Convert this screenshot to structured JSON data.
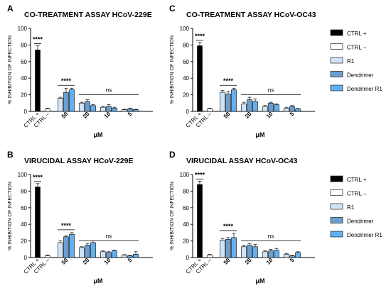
{
  "colors": {
    "ctrl_pos": "#000000",
    "ctrl_neg": "#ffffff",
    "r1": "#cfe5f7",
    "dendrimer": "#6b9fcf",
    "dendrimer_r1": "#64b0ee"
  },
  "chart_data": [
    {
      "type": "bar",
      "panel_letter": "A",
      "title": "CO-TREATMENT ASSAY HCoV-229E",
      "ylabel": "% INHIBITION OF INFECTION",
      "xlabel": "μM",
      "ylim": [
        0,
        100
      ],
      "yticks": [
        0,
        20,
        40,
        60,
        80,
        100
      ],
      "controls": [
        {
          "label": "CTRL +",
          "value": 74,
          "err": 5
        },
        {
          "label": "CTRL –",
          "value": 3,
          "err": 1
        }
      ],
      "categories": [
        "50",
        "20",
        "10",
        "5"
      ],
      "series": [
        {
          "name": "R1",
          "values": [
            16,
            10,
            5,
            2
          ],
          "err": [
            1,
            1,
            1,
            0.5
          ]
        },
        {
          "name": "Dendrimer",
          "values": [
            23,
            12,
            6,
            3
          ],
          "err": [
            5,
            2,
            2,
            1
          ]
        },
        {
          "name": "Dendrimer R1",
          "values": [
            26,
            7,
            4,
            2
          ],
          "err": [
            2,
            1,
            1,
            0.5
          ]
        }
      ],
      "annotations": {
        "ctrl": "****",
        "dose50": "****",
        "ns": "ns"
      },
      "show_legend": false
    },
    {
      "type": "bar",
      "panel_letter": "C",
      "title": "CO-TREATMENT ASSAY HCoV-OC43",
      "ylabel": "% INHIBITION OF INFECTION",
      "xlabel": "μM",
      "ylim": [
        0,
        100
      ],
      "yticks": [
        0,
        20,
        40,
        60,
        80,
        100
      ],
      "controls": [
        {
          "label": "CTRL +",
          "value": 79,
          "err": 4
        },
        {
          "label": "CTRL –",
          "value": 3,
          "err": 1
        }
      ],
      "categories": [
        "50",
        "20",
        "10",
        "5"
      ],
      "series": [
        {
          "name": "R1",
          "values": [
            23,
            9,
            6,
            4
          ],
          "err": [
            2,
            2,
            1,
            1
          ]
        },
        {
          "name": "Dendrimer",
          "values": [
            21,
            14,
            10,
            6
          ],
          "err": [
            3,
            3,
            1,
            1
          ]
        },
        {
          "name": "Dendrimer R1",
          "values": [
            26,
            12,
            8,
            3
          ],
          "err": [
            2,
            3,
            1,
            0.5
          ]
        }
      ],
      "annotations": {
        "ctrl": "****",
        "dose50": "****",
        "ns": "ns"
      },
      "show_legend": true
    },
    {
      "type": "bar",
      "panel_letter": "B",
      "title": "VIRUCIDAL ASSAY HCoV-229E",
      "ylabel": "% INHIBITION OF INFECTION",
      "xlabel": "μM",
      "ylim": [
        0,
        100
      ],
      "yticks": [
        0,
        20,
        40,
        60,
        80,
        100
      ],
      "controls": [
        {
          "label": "CTRL +",
          "value": 85,
          "err": 4
        },
        {
          "label": "CTRL –",
          "value": 2,
          "err": 1
        }
      ],
      "categories": [
        "50",
        "20",
        "10",
        "5"
      ],
      "series": [
        {
          "name": "R1",
          "values": [
            18,
            12,
            7,
            3
          ],
          "err": [
            2,
            1,
            1,
            0.5
          ]
        },
        {
          "name": "Dendrimer",
          "values": [
            25,
            15,
            6,
            2
          ],
          "err": [
            1,
            2,
            1,
            0.5
          ]
        },
        {
          "name": "Dendrimer R1",
          "values": [
            28,
            18,
            8,
            4
          ],
          "err": [
            2,
            2,
            1,
            3
          ]
        }
      ],
      "annotations": {
        "ctrl": "****",
        "dose50": "****",
        "ns": "ns"
      },
      "show_legend": false
    },
    {
      "type": "bar",
      "panel_letter": "D",
      "title": "VIRUCIDAL ASSAY HCoV-OC43",
      "ylabel": "% INHIBITION OF INFECTION",
      "xlabel": "μM",
      "ylim": [
        0,
        100
      ],
      "yticks": [
        0,
        20,
        40,
        60,
        80,
        100
      ],
      "controls": [
        {
          "label": "CTRL +",
          "value": 88,
          "err": 4
        },
        {
          "label": "CTRL –",
          "value": 3,
          "err": 1
        }
      ],
      "categories": [
        "50",
        "20",
        "10",
        "5"
      ],
      "series": [
        {
          "name": "R1",
          "values": [
            21,
            13,
            7,
            4
          ],
          "err": [
            2,
            2,
            1,
            1
          ]
        },
        {
          "name": "Dendrimer",
          "values": [
            22,
            15,
            8,
            2
          ],
          "err": [
            2,
            2,
            2,
            0.5
          ]
        },
        {
          "name": "Dendrimer R1",
          "values": [
            24,
            13,
            9,
            6
          ],
          "err": [
            5,
            3,
            2,
            1
          ]
        }
      ],
      "annotations": {
        "ctrl": "****",
        "dose50": "****",
        "ns": "ns"
      },
      "show_legend": true
    }
  ]
}
